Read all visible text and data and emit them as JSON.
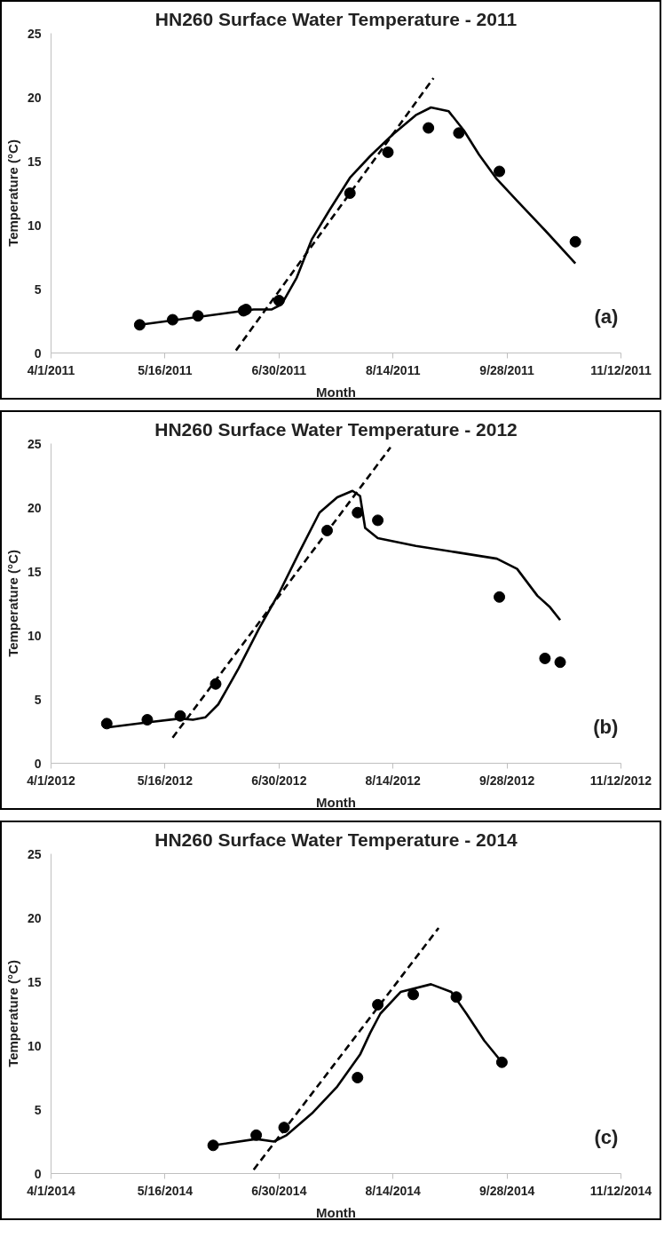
{
  "chart_data": [
    {
      "type": "scatter",
      "title": "HN260 Surface Water Temperature - 2011",
      "xlabel": "Month",
      "ylabel": "Temperature (°C)",
      "annotations": [
        "(a)"
      ],
      "xlim": [
        "2011-04-01",
        "2011-11-12"
      ],
      "ylim": [
        0,
        25
      ],
      "yticks": [
        0,
        5,
        10,
        15,
        20,
        25
      ],
      "xticks": [
        {
          "value": "2011-04-01",
          "label": "4/1/2011"
        },
        {
          "value": "2011-05-16",
          "label": "5/16/2011"
        },
        {
          "value": "2011-06-30",
          "label": "6/30/2011"
        },
        {
          "value": "2011-08-14",
          "label": "8/14/2011"
        },
        {
          "value": "2011-09-28",
          "label": "9/28/2011"
        },
        {
          "value": "2011-11-12",
          "label": "11/12/2011"
        }
      ],
      "grid": false,
      "series": [
        {
          "type": "scatter",
          "marker": "circle",
          "color": "#000000",
          "x": [
            "2011-05-06",
            "2011-05-19",
            "2011-05-29",
            "2011-06-16",
            "2011-06-17",
            "2011-06-30",
            "2011-07-28",
            "2011-08-12",
            "2011-08-28",
            "2011-09-09",
            "2011-09-25",
            "2011-10-25"
          ],
          "values": [
            2.2,
            2.6,
            2.9,
            3.3,
            3.4,
            4.1,
            12.5,
            15.7,
            17.6,
            17.2,
            14.2,
            8.7
          ]
        },
        {
          "type": "line",
          "marker": "none",
          "line_style": "solid",
          "color": "#000000",
          "x": [
            "2011-05-06",
            "2011-06-16",
            "2011-06-20",
            "2011-06-27",
            "2011-07-01",
            "2011-07-07",
            "2011-07-13",
            "2011-07-20",
            "2011-07-28",
            "2011-08-05",
            "2011-08-14",
            "2011-08-23",
            "2011-08-29",
            "2011-09-05",
            "2011-09-11",
            "2011-09-17",
            "2011-09-24",
            "2011-10-02",
            "2011-10-13",
            "2011-10-25"
          ],
          "values": [
            2.2,
            3.3,
            3.4,
            3.4,
            3.8,
            5.9,
            8.9,
            11.2,
            13.7,
            15.4,
            17.1,
            18.6,
            19.2,
            18.9,
            17.4,
            15.5,
            13.6,
            11.9,
            9.6,
            7.0
          ]
        },
        {
          "type": "line",
          "marker": "none",
          "line_style": "dashed",
          "color": "#000000",
          "x": [
            "2011-06-13",
            "2011-08-30"
          ],
          "values": [
            0.2,
            21.5
          ]
        }
      ]
    },
    {
      "type": "scatter",
      "title": "HN260 Surface Water Temperature - 2012",
      "xlabel": "Month",
      "ylabel": "Temperature (°C)",
      "annotations": [
        "(b)"
      ],
      "xlim": [
        "2012-04-01",
        "2012-11-12"
      ],
      "ylim": [
        0,
        25
      ],
      "yticks": [
        0,
        5,
        10,
        15,
        20,
        25
      ],
      "xticks": [
        {
          "value": "2012-04-01",
          "label": "4/1/2012"
        },
        {
          "value": "2012-05-16",
          "label": "5/16/2012"
        },
        {
          "value": "2012-06-30",
          "label": "6/30/2012"
        },
        {
          "value": "2012-08-14",
          "label": "8/14/2012"
        },
        {
          "value": "2012-09-28",
          "label": "9/28/2012"
        },
        {
          "value": "2012-11-12",
          "label": "11/12/2012"
        }
      ],
      "grid": false,
      "series": [
        {
          "type": "scatter",
          "marker": "circle",
          "color": "#000000",
          "x": [
            "2012-04-23",
            "2012-05-09",
            "2012-05-22",
            "2012-06-05",
            "2012-07-19",
            "2012-07-31",
            "2012-08-08",
            "2012-09-25",
            "2012-10-13",
            "2012-10-19"
          ],
          "values": [
            3.1,
            3.4,
            3.7,
            6.2,
            18.2,
            19.6,
            19.0,
            13.0,
            8.2,
            7.9
          ]
        },
        {
          "type": "line",
          "marker": "none",
          "line_style": "solid",
          "color": "#000000",
          "x": [
            "2012-04-23",
            "2012-05-09",
            "2012-05-22",
            "2012-05-27",
            "2012-06-01",
            "2012-06-06",
            "2012-06-14",
            "2012-06-22",
            "2012-06-30",
            "2012-07-08",
            "2012-07-16",
            "2012-07-23",
            "2012-07-29",
            "2012-08-01",
            "2012-08-03",
            "2012-08-08",
            "2012-08-23",
            "2012-09-08",
            "2012-09-24",
            "2012-10-02",
            "2012-10-10",
            "2012-10-15",
            "2012-10-19"
          ],
          "values": [
            2.8,
            3.2,
            3.5,
            3.4,
            3.6,
            4.6,
            7.4,
            10.5,
            13.3,
            16.5,
            19.6,
            20.8,
            21.3,
            20.9,
            18.4,
            17.6,
            17.0,
            16.5,
            16.0,
            15.2,
            13.1,
            12.2,
            11.2
          ]
        },
        {
          "type": "line",
          "marker": "none",
          "line_style": "dashed",
          "color": "#000000",
          "x": [
            "2012-05-19",
            "2012-08-13"
          ],
          "values": [
            2.0,
            24.7
          ]
        }
      ]
    },
    {
      "type": "scatter",
      "title": "HN260 Surface Water Temperature - 2014",
      "xlabel": "Month",
      "ylabel": "Temperature (°C)",
      "annotations": [
        "(c)"
      ],
      "xlim": [
        "2014-04-01",
        "2014-11-12"
      ],
      "ylim": [
        0,
        25
      ],
      "yticks": [
        0,
        5,
        10,
        15,
        20,
        25
      ],
      "xticks": [
        {
          "value": "2014-04-01",
          "label": "4/1/2014"
        },
        {
          "value": "2014-05-16",
          "label": "5/16/2014"
        },
        {
          "value": "2014-06-30",
          "label": "6/30/2014"
        },
        {
          "value": "2014-08-14",
          "label": "8/14/2014"
        },
        {
          "value": "2014-09-28",
          "label": "9/28/2014"
        },
        {
          "value": "2014-11-12",
          "label": "11/12/2014"
        }
      ],
      "grid": false,
      "series": [
        {
          "type": "scatter",
          "marker": "circle",
          "color": "#000000",
          "x": [
            "2014-06-04",
            "2014-06-21",
            "2014-07-02",
            "2014-07-31",
            "2014-08-08",
            "2014-08-22",
            "2014-09-08",
            "2014-09-26"
          ],
          "values": [
            2.2,
            3.0,
            3.6,
            7.5,
            13.2,
            14.0,
            13.8,
            8.7
          ]
        },
        {
          "type": "line",
          "marker": "none",
          "line_style": "solid",
          "color": "#000000",
          "x": [
            "2014-06-04",
            "2014-06-21",
            "2014-06-28",
            "2014-07-03",
            "2014-07-13",
            "2014-07-23",
            "2014-08-01",
            "2014-08-05",
            "2014-08-09",
            "2014-08-17",
            "2014-08-29",
            "2014-09-06",
            "2014-09-12",
            "2014-09-19",
            "2014-09-26"
          ],
          "values": [
            2.2,
            2.7,
            2.5,
            3.0,
            4.7,
            6.8,
            9.3,
            11.0,
            12.5,
            14.2,
            14.8,
            14.2,
            12.5,
            10.4,
            8.7
          ]
        },
        {
          "type": "line",
          "marker": "none",
          "line_style": "dashed",
          "color": "#000000",
          "x": [
            "2014-06-20",
            "2014-09-01"
          ],
          "values": [
            0.3,
            19.2
          ]
        }
      ]
    }
  ]
}
